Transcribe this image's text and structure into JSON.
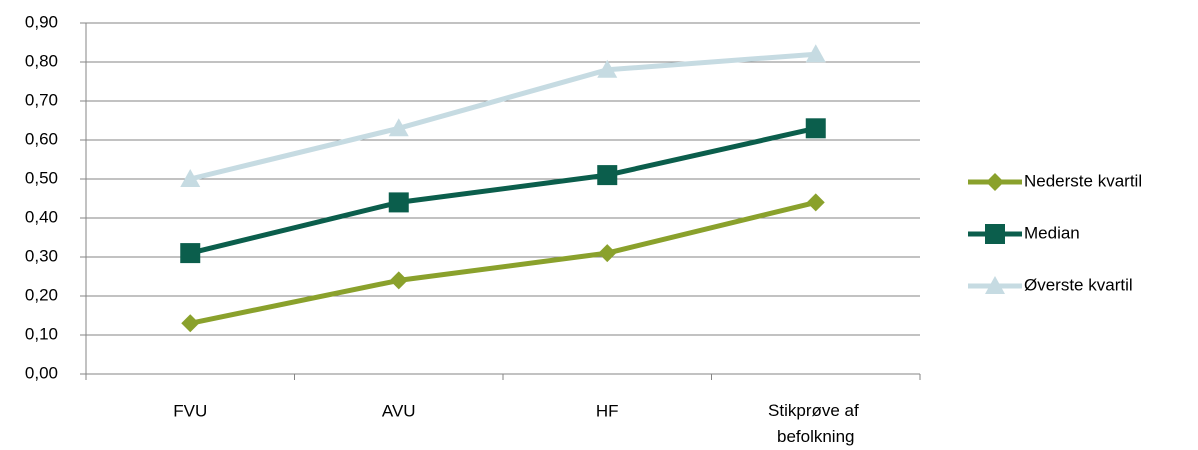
{
  "chart_data": {
    "type": "line",
    "categories": [
      "FVU",
      "AVU",
      "HF",
      "Stikprøve af befolkning"
    ],
    "series": [
      {
        "name": "Nederste kvartil",
        "color": "#8aa12c",
        "marker": "diamond",
        "values": [
          0.13,
          0.24,
          0.31,
          0.44
        ]
      },
      {
        "name": "Median",
        "color": "#0b5e4c",
        "marker": "square",
        "values": [
          0.31,
          0.44,
          0.51,
          0.63
        ]
      },
      {
        "name": "Øverste kvartil",
        "color": "#c6dbe2",
        "marker": "triangle",
        "values": [
          0.5,
          0.63,
          0.78,
          0.82
        ]
      }
    ],
    "ylim": [
      0,
      0.9
    ],
    "yticks": [
      {
        "value": 0,
        "label": "0,00"
      },
      {
        "value": 0.1,
        "label": "0,10"
      },
      {
        "value": 0.2,
        "label": "0,20"
      },
      {
        "value": 0.3,
        "label": "0,30"
      },
      {
        "value": 0.4,
        "label": "0,40"
      },
      {
        "value": 0.5,
        "label": "0,50"
      },
      {
        "value": 0.6,
        "label": "0,60"
      },
      {
        "value": 0.7,
        "label": "0,70"
      },
      {
        "value": 0.8,
        "label": "0,80"
      },
      {
        "value": 0.9,
        "label": "0,90"
      }
    ],
    "grid": true,
    "legend": "right"
  }
}
